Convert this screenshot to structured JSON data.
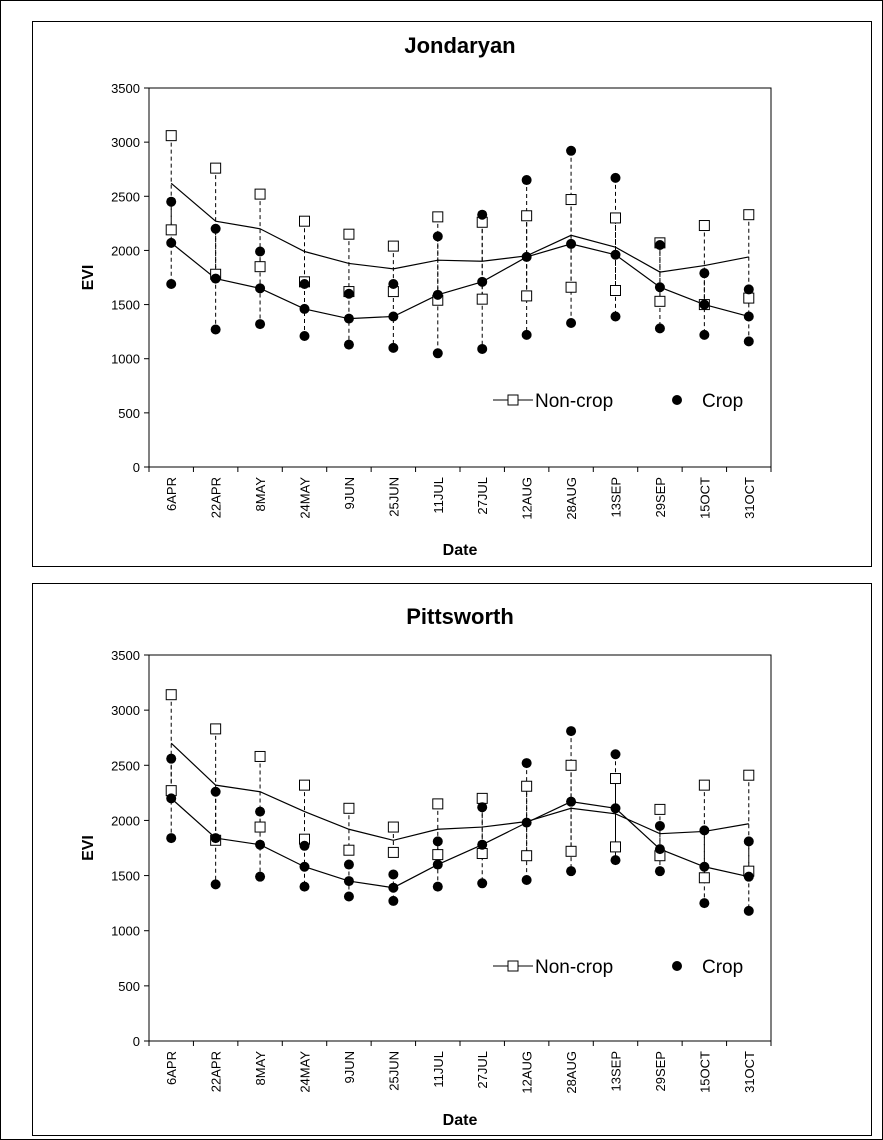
{
  "chart_data": [
    {
      "type": "line",
      "title": "Jondaryan",
      "xlabel": "Date",
      "ylabel": "EVI",
      "ylim": [
        0,
        3500
      ],
      "yticks": [
        0,
        500,
        1000,
        1500,
        2000,
        2500,
        3000,
        3500
      ],
      "grid": false,
      "legend_position": "lower-right",
      "categories": [
        "6APR",
        "22APR",
        "8MAY",
        "24MAY",
        "9JUN",
        "25JUN",
        "11JUL",
        "27JUL",
        "12AUG",
        "28AUG",
        "13SEP",
        "29SEP",
        "15OCT",
        "31OCT"
      ],
      "series": [
        {
          "name": "Non-crop",
          "marker": "open-square",
          "mean": [
            2620,
            2270,
            2200,
            1990,
            1880,
            1830,
            1910,
            1900,
            1950,
            2140,
            2030,
            1800,
            1860,
            1940
          ],
          "upper": [
            3060,
            2760,
            2520,
            2270,
            2150,
            2040,
            2310,
            2260,
            2320,
            2470,
            2300,
            2070,
            2230,
            2330
          ],
          "lower": [
            2190,
            1780,
            1850,
            1710,
            1620,
            1620,
            1540,
            1550,
            1580,
            1660,
            1630,
            1530,
            1500,
            1560
          ]
        },
        {
          "name": "Crop",
          "marker": "filled-circle",
          "mean": [
            2070,
            1740,
            1650,
            1460,
            1370,
            1390,
            1590,
            1710,
            1940,
            2060,
            1960,
            1660,
            1500,
            1390
          ],
          "upper": [
            2450,
            2200,
            1990,
            1690,
            1600,
            1690,
            2130,
            2330,
            2650,
            2920,
            2670,
            2050,
            1790,
            1640
          ],
          "lower": [
            1690,
            1270,
            1320,
            1210,
            1130,
            1100,
            1050,
            1090,
            1220,
            1330,
            1390,
            1280,
            1220,
            1160
          ]
        }
      ]
    },
    {
      "type": "line",
      "title": "Pittsworth",
      "xlabel": "Date",
      "ylabel": "EVI",
      "ylim": [
        0,
        3500
      ],
      "yticks": [
        0,
        500,
        1000,
        1500,
        2000,
        2500,
        3000,
        3500
      ],
      "grid": false,
      "legend_position": "lower-right",
      "categories": [
        "6APR",
        "22APR",
        "8MAY",
        "24MAY",
        "9JUN",
        "25JUN",
        "11JUL",
        "27JUL",
        "12AUG",
        "28AUG",
        "13SEP",
        "29SEP",
        "15OCT",
        "31OCT"
      ],
      "series": [
        {
          "name": "Non-crop",
          "marker": "open-square",
          "mean": [
            2700,
            2320,
            2260,
            2080,
            1920,
            1820,
            1920,
            1940,
            1990,
            2110,
            2060,
            1880,
            1900,
            1970
          ],
          "upper": [
            3140,
            2830,
            2580,
            2320,
            2110,
            1940,
            2150,
            2200,
            2310,
            2500,
            2380,
            2100,
            2320,
            2410
          ],
          "lower": [
            2270,
            1820,
            1940,
            1830,
            1730,
            1710,
            1690,
            1700,
            1680,
            1720,
            1760,
            1680,
            1480,
            1540
          ]
        },
        {
          "name": "Crop",
          "marker": "filled-circle",
          "mean": [
            2200,
            1840,
            1780,
            1580,
            1450,
            1390,
            1600,
            1780,
            1980,
            2170,
            2110,
            1740,
            1580,
            1490
          ],
          "upper": [
            2560,
            2260,
            2080,
            1770,
            1600,
            1510,
            1810,
            2120,
            2520,
            2810,
            2600,
            1950,
            1910,
            1810
          ],
          "lower": [
            1840,
            1420,
            1490,
            1400,
            1310,
            1270,
            1400,
            1430,
            1460,
            1540,
            1640,
            1540,
            1250,
            1180
          ]
        }
      ]
    }
  ]
}
